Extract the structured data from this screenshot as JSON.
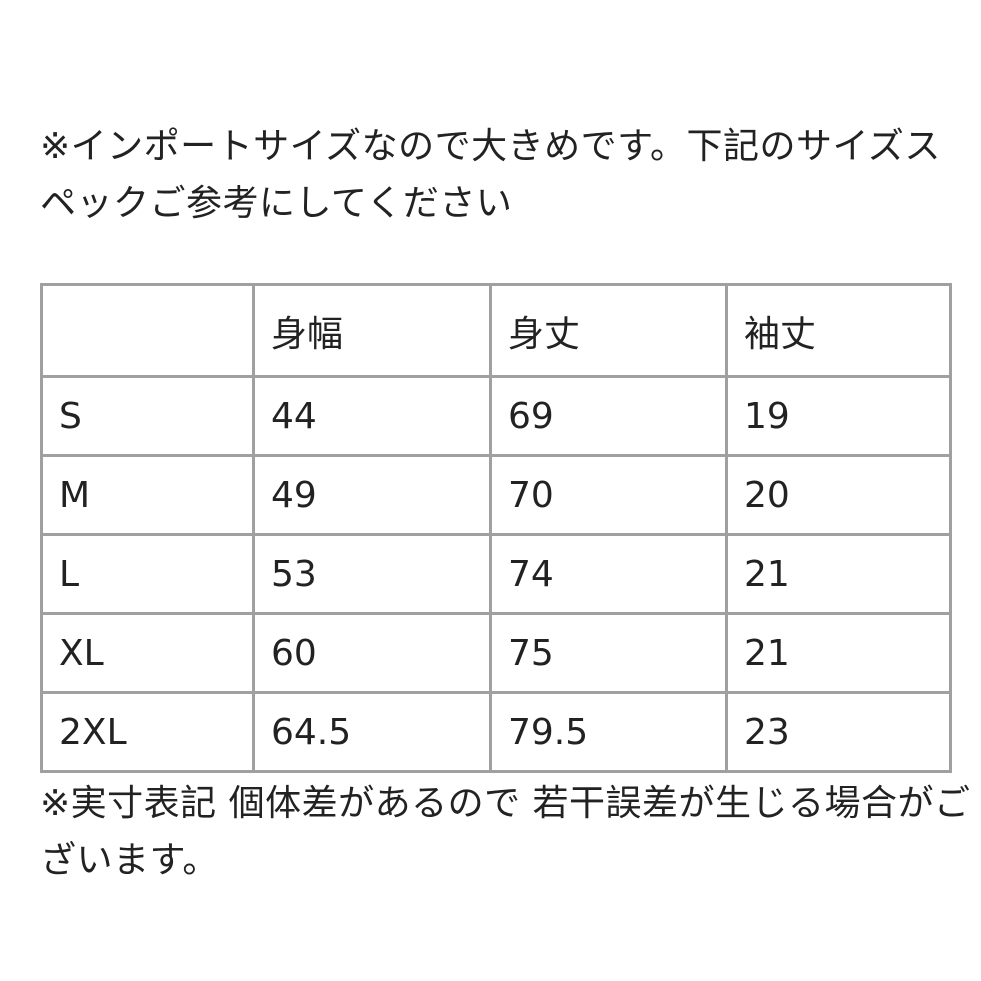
{
  "intro_text": "※インポートサイズなので大きめです。下記のサイズスペックご参考にしてください",
  "table": {
    "headers": [
      "",
      "身幅",
      "身丈",
      "袖丈"
    ],
    "rows": [
      [
        "S",
        "44",
        "69",
        "19"
      ],
      [
        "M",
        "49",
        "70",
        "20"
      ],
      [
        "L",
        "53",
        "74",
        "21"
      ],
      [
        "XL",
        "60",
        "75",
        "21"
      ],
      [
        "2XL",
        "64.5",
        "79.5",
        "23"
      ]
    ]
  },
  "outro_text": "※実寸表記 個体差があるので 若干誤差が生じる場合がございます。"
}
